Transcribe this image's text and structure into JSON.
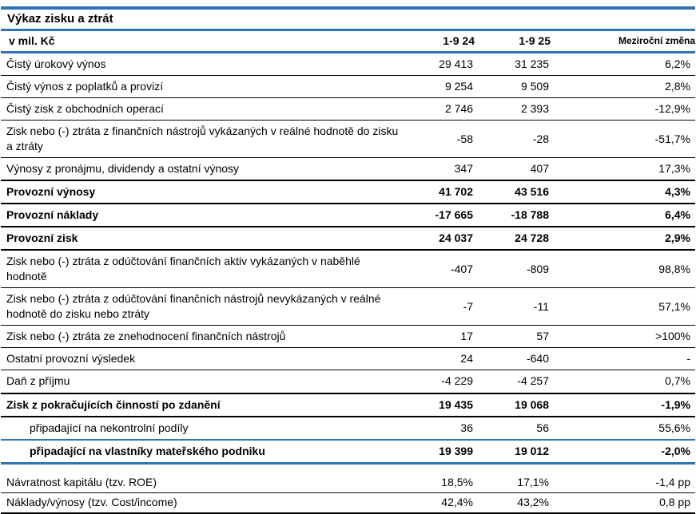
{
  "colors": {
    "accent_blue": "#2E74B5",
    "line_black": "#000000"
  },
  "table": {
    "title": "Výkaz zisku a ztrát",
    "unit_label": "v mil. Kč",
    "columns": [
      "1-9 24",
      "1-9 25",
      "Meziroční změna"
    ],
    "rows": [
      {
        "label": "Čistý úrokový výnos",
        "v1": "29 413",
        "v2": "31 235",
        "change": "6,2%",
        "bold": false,
        "indent": false,
        "sep": "thin"
      },
      {
        "label": "Čistý výnos z poplatků a provizí",
        "v1": "9 254",
        "v2": "9 509",
        "change": "2,8%",
        "bold": false,
        "indent": false,
        "sep": "thin"
      },
      {
        "label": "Čistý zisk z obchodních operací",
        "v1": "2 746",
        "v2": "2 393",
        "change": "-12,9%",
        "bold": false,
        "indent": false,
        "sep": "thin"
      },
      {
        "label": "Zisk nebo (-) ztráta z finančních nástrojů vykázaných v reálné hodnotě do zisku a ztráty",
        "v1": "-58",
        "v2": "-28",
        "change": "-51,7%",
        "bold": false,
        "indent": false,
        "sep": "thin"
      },
      {
        "label": "Výnosy z pronájmu, dividendy a ostatní výnosy",
        "v1": "347",
        "v2": "407",
        "change": "17,3%",
        "bold": false,
        "indent": false,
        "sep": "thick"
      },
      {
        "label": "Provozní výnosy",
        "v1": "41 702",
        "v2": "43 516",
        "change": "4,3%",
        "bold": true,
        "indent": false,
        "sep": "thick"
      },
      {
        "label": "Provozní náklady",
        "v1": "-17 665",
        "v2": "-18 788",
        "change": "6,4%",
        "bold": true,
        "indent": false,
        "sep": "thick"
      },
      {
        "label": "Provozní zisk",
        "v1": "24 037",
        "v2": "24 728",
        "change": "2,9%",
        "bold": true,
        "indent": false,
        "sep": "thick"
      },
      {
        "label": "Zisk nebo (-) ztráta z odúčtování finančních aktiv vykázaných v naběhlé hodnotě",
        "v1": "-407",
        "v2": "-809",
        "change": "98,8%",
        "bold": false,
        "indent": false,
        "sep": "thin"
      },
      {
        "label": "Zisk nebo (-) ztráta z odúčtování finančních nástrojů nevykázaných v reálné hodnotě do zisku nebo ztráty",
        "v1": "-7",
        "v2": "-11",
        "change": "57,1%",
        "bold": false,
        "indent": false,
        "sep": "thin"
      },
      {
        "label": "Zisk nebo (-) ztráta ze znehodnocení finančních nástrojů",
        "v1": "17",
        "v2": "57",
        "change": ">100%",
        "bold": false,
        "indent": false,
        "sep": "thin"
      },
      {
        "label": "Ostatní provozní výsledek",
        "v1": "24",
        "v2": "-640",
        "change": "-",
        "bold": false,
        "indent": false,
        "sep": "thin"
      },
      {
        "label": "Daň z příjmu",
        "v1": "-4 229",
        "v2": "-4 257",
        "change": "0,7%",
        "bold": false,
        "indent": false,
        "sep": "thick"
      },
      {
        "label": "Zisk z pokračujících činností po zdanění",
        "v1": "19 435",
        "v2": "19 068",
        "change": "-1,9%",
        "bold": true,
        "indent": false,
        "sep": "thick"
      },
      {
        "label": "připadající na nekontrolní podíly",
        "v1": "36",
        "v2": "56",
        "change": "55,6%",
        "bold": false,
        "indent": true,
        "sep": "blue"
      },
      {
        "label": "připadající na vlastníky mateřského podniku",
        "v1": "19 399",
        "v2": "19 012",
        "change": "-2,0%",
        "bold": true,
        "indent": true,
        "sep": "blue-thick"
      },
      {
        "spacer": true
      },
      {
        "label": "Návratnost kapitálu (tzv. ROE)",
        "v1": "18,5%",
        "v2": "17,1%",
        "change": "-1,4 pp",
        "bold": false,
        "indent": false,
        "sep": "thin",
        "compact": true
      },
      {
        "label": "Náklady/výnosy (tzv. Cost/income)",
        "v1": "42,4%",
        "v2": "43,2%",
        "change": "0,8 pp",
        "bold": false,
        "indent": false,
        "sep": "thick",
        "compact": true
      }
    ]
  }
}
